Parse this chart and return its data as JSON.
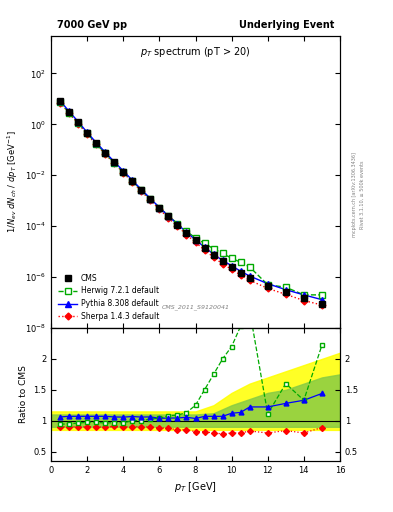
{
  "title_left": "7000 GeV pp",
  "title_right": "Underlying Event",
  "main_title": "p_T spectrum (pT > 20)",
  "watermark": "CMS_2011_S9120041",
  "cms_x": [
    0.5,
    1.0,
    1.5,
    2.0,
    2.5,
    3.0,
    3.5,
    4.0,
    4.5,
    5.0,
    5.5,
    6.0,
    6.5,
    7.0,
    7.5,
    8.0,
    8.5,
    9.0,
    9.5,
    10.0,
    10.5,
    11.0,
    12.0,
    13.0,
    14.0,
    15.0
  ],
  "cms_y": [
    8.0,
    3.0,
    1.2,
    0.45,
    0.18,
    0.075,
    0.032,
    0.014,
    0.006,
    0.0026,
    0.00115,
    0.00052,
    0.00024,
    0.000115,
    5.5e-05,
    2.8e-05,
    1.4e-05,
    7.5e-06,
    4.2e-06,
    2.5e-06,
    1.5e-06,
    9e-07,
    4.5e-07,
    2.5e-07,
    1.5e-07,
    9e-08
  ],
  "cms_yerr": [
    0.3,
    0.12,
    0.048,
    0.018,
    0.007,
    0.003,
    0.0013,
    0.0006,
    0.00025,
    0.0001,
    4.5e-05,
    2e-05,
    9e-06,
    4.5e-06,
    2e-06,
    1.1e-06,
    5.5e-07,
    3e-07,
    1.7e-07,
    1e-07,
    6e-08,
    3.6e-08,
    1.8e-08,
    1e-08,
    6e-09,
    3.6e-09
  ],
  "herwig_x": [
    0.5,
    1.0,
    1.5,
    2.0,
    2.5,
    3.0,
    3.5,
    4.0,
    4.5,
    5.0,
    5.5,
    6.0,
    6.5,
    7.0,
    7.5,
    8.0,
    8.5,
    9.0,
    9.5,
    10.0,
    10.5,
    11.0,
    12.0,
    13.0,
    14.0,
    15.0
  ],
  "herwig_y": [
    7.5,
    2.85,
    1.15,
    0.44,
    0.175,
    0.072,
    0.031,
    0.0135,
    0.006,
    0.0026,
    0.00118,
    0.00054,
    0.00026,
    0.000125,
    6.2e-05,
    3.5e-05,
    2.1e-05,
    1.3e-05,
    8.5e-06,
    5.5e-06,
    3.8e-06,
    2.5e-06,
    5e-07,
    4e-07,
    2e-07,
    2e-07
  ],
  "herwig_ratio": [
    0.94,
    0.95,
    0.96,
    0.975,
    0.975,
    0.96,
    0.97,
    0.965,
    1.0,
    1.0,
    1.025,
    1.04,
    1.08,
    1.09,
    1.13,
    1.25,
    1.5,
    1.75,
    2.0,
    2.2,
    2.53,
    2.78,
    1.11,
    1.6,
    1.33,
    2.22
  ],
  "pythia_x": [
    0.5,
    1.0,
    1.5,
    2.0,
    2.5,
    3.0,
    3.5,
    4.0,
    4.5,
    5.0,
    5.5,
    6.0,
    6.5,
    7.0,
    7.5,
    8.0,
    8.5,
    9.0,
    9.5,
    10.0,
    10.5,
    11.0,
    12.0,
    13.0,
    14.0,
    15.0
  ],
  "pythia_y": [
    8.5,
    3.2,
    1.28,
    0.48,
    0.192,
    0.08,
    0.034,
    0.0148,
    0.0064,
    0.00275,
    0.00122,
    0.00054,
    0.00025,
    0.00012,
    5.8e-05,
    2.9e-05,
    1.5e-05,
    8e-06,
    4.5e-06,
    2.8e-06,
    1.7e-06,
    1.1e-06,
    5.5e-07,
    3.2e-07,
    2e-07,
    1.3e-07
  ],
  "pythia_ratio": [
    1.06,
    1.07,
    1.07,
    1.07,
    1.07,
    1.07,
    1.06,
    1.057,
    1.067,
    1.058,
    1.061,
    1.038,
    1.042,
    1.043,
    1.055,
    1.035,
    1.07,
    1.07,
    1.07,
    1.12,
    1.133,
    1.222,
    1.222,
    1.28,
    1.33,
    1.44
  ],
  "sherpa_x": [
    0.5,
    1.0,
    1.5,
    2.0,
    2.5,
    3.0,
    3.5,
    4.0,
    4.5,
    5.0,
    5.5,
    6.0,
    6.5,
    7.0,
    7.5,
    8.0,
    8.5,
    9.0,
    9.5,
    10.0,
    10.5,
    11.0,
    12.0,
    13.0,
    14.0,
    15.0
  ],
  "sherpa_y": [
    7.2,
    2.7,
    1.08,
    0.405,
    0.162,
    0.067,
    0.029,
    0.0126,
    0.0054,
    0.00235,
    0.00103,
    0.00046,
    0.00021,
    9.8e-05,
    4.7e-05,
    2.3e-05,
    1.15e-05,
    6e-06,
    3.3e-06,
    2e-06,
    1.2e-06,
    7.5e-07,
    3.6e-07,
    2.1e-07,
    1.2e-07,
    8e-08
  ],
  "sherpa_ratio": [
    0.9,
    0.9,
    0.9,
    0.9,
    0.9,
    0.893,
    0.906,
    0.9,
    0.9,
    0.904,
    0.896,
    0.885,
    0.875,
    0.852,
    0.854,
    0.821,
    0.821,
    0.8,
    0.786,
    0.8,
    0.8,
    0.833,
    0.8,
    0.84,
    0.8,
    0.889
  ],
  "yellow_band_x": [
    0,
    1,
    2,
    3,
    4,
    5,
    6,
    7,
    8,
    9,
    10,
    11,
    12,
    13,
    14,
    15,
    16
  ],
  "yellow_band_lo": [
    0.85,
    0.85,
    0.85,
    0.85,
    0.85,
    0.85,
    0.85,
    0.85,
    0.85,
    0.85,
    0.85,
    0.85,
    0.85,
    0.85,
    0.85,
    0.85,
    0.85
  ],
  "yellow_band_hi": [
    1.15,
    1.15,
    1.15,
    1.15,
    1.15,
    1.15,
    1.15,
    1.15,
    1.15,
    1.25,
    1.45,
    1.6,
    1.7,
    1.8,
    1.9,
    2.0,
    2.1
  ],
  "green_band_x": [
    0,
    1,
    2,
    3,
    4,
    5,
    6,
    7,
    8,
    9,
    10,
    11,
    12,
    13,
    14,
    15,
    16
  ],
  "green_band_lo": [
    0.9,
    0.9,
    0.9,
    0.9,
    0.9,
    0.9,
    0.9,
    0.9,
    0.9,
    0.9,
    0.9,
    0.9,
    0.9,
    0.9,
    0.9,
    0.9,
    0.9
  ],
  "green_band_hi": [
    1.1,
    1.1,
    1.1,
    1.1,
    1.1,
    1.1,
    1.1,
    1.1,
    1.1,
    1.12,
    1.25,
    1.35,
    1.45,
    1.5,
    1.6,
    1.7,
    1.75
  ],
  "color_cms": "#000000",
  "color_herwig": "#00aa00",
  "color_pythia": "#0000ff",
  "color_sherpa": "#ff0000",
  "color_yellow": "#ffff00",
  "color_green": "#88cc44",
  "xlim": [
    0,
    16
  ],
  "ylim_main": [
    1e-08,
    3000.0
  ],
  "ylim_ratio": [
    0.35,
    2.5
  ],
  "right_text1": "Rivet 3.1.10, ≥ 500k events",
  "right_text2": "mcplots.cern.ch [arXiv:1306.3436]"
}
